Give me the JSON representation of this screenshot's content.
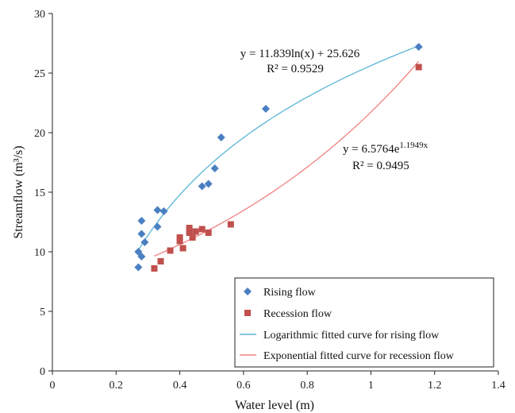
{
  "chart_data": {
    "type": "scatter",
    "xlabel": "Water level (m)",
    "ylabel": "Streamflow (m³/s)",
    "xlim": [
      0,
      1.4
    ],
    "ylim": [
      0,
      30
    ],
    "xticks": [
      "0",
      "0.2",
      "0.4",
      "0.6",
      "0.8",
      "1",
      "1.2",
      "1.4"
    ],
    "yticks": [
      "0",
      "5",
      "10",
      "15",
      "20",
      "25",
      "30"
    ],
    "grid": false,
    "legend_position": "bottom-right",
    "series": [
      {
        "name": "Rising flow",
        "marker": "diamond",
        "color": "#4a7fc1",
        "points": [
          {
            "x": 0.27,
            "y": 8.7
          },
          {
            "x": 0.27,
            "y": 10.0
          },
          {
            "x": 0.28,
            "y": 9.6
          },
          {
            "x": 0.28,
            "y": 11.5
          },
          {
            "x": 0.28,
            "y": 12.6
          },
          {
            "x": 0.29,
            "y": 10.8
          },
          {
            "x": 0.33,
            "y": 12.1
          },
          {
            "x": 0.33,
            "y": 13.5
          },
          {
            "x": 0.35,
            "y": 13.4
          },
          {
            "x": 0.47,
            "y": 15.5
          },
          {
            "x": 0.49,
            "y": 15.7
          },
          {
            "x": 0.51,
            "y": 17.0
          },
          {
            "x": 0.53,
            "y": 19.6
          },
          {
            "x": 0.67,
            "y": 22.0
          },
          {
            "x": 1.15,
            "y": 27.2
          }
        ]
      },
      {
        "name": "Recession flow",
        "marker": "square",
        "color": "#c0504d",
        "points": [
          {
            "x": 0.32,
            "y": 8.6
          },
          {
            "x": 0.34,
            "y": 9.2
          },
          {
            "x": 0.37,
            "y": 10.1
          },
          {
            "x": 0.4,
            "y": 10.9
          },
          {
            "x": 0.4,
            "y": 11.2
          },
          {
            "x": 0.41,
            "y": 10.3
          },
          {
            "x": 0.43,
            "y": 11.6
          },
          {
            "x": 0.43,
            "y": 12.0
          },
          {
            "x": 0.44,
            "y": 11.2
          },
          {
            "x": 0.45,
            "y": 11.7
          },
          {
            "x": 0.47,
            "y": 11.9
          },
          {
            "x": 0.49,
            "y": 11.6
          },
          {
            "x": 0.56,
            "y": 12.3
          },
          {
            "x": 1.15,
            "y": 25.5
          }
        ]
      }
    ],
    "fits": [
      {
        "name": "Logarithmic fitted curve for rising flow",
        "kind": "log",
        "a": 11.839,
        "b": 25.626,
        "x_range": [
          0.27,
          1.15
        ],
        "color": "#5ab4d6",
        "equation_text": "y = 11.839ln(x) + 25.626",
        "r2_text": "R² = 0.9529"
      },
      {
        "name": "Exponential fitted curve for recession flow",
        "kind": "exp",
        "a": 6.5764,
        "b": 1.1949,
        "x_range": [
          0.32,
          1.15
        ],
        "color": "#f08080",
        "equation_prefix": "y = 6.5764e",
        "equation_exponent": "1.1949x",
        "r2_text": "R² = 0.9495"
      }
    ]
  }
}
